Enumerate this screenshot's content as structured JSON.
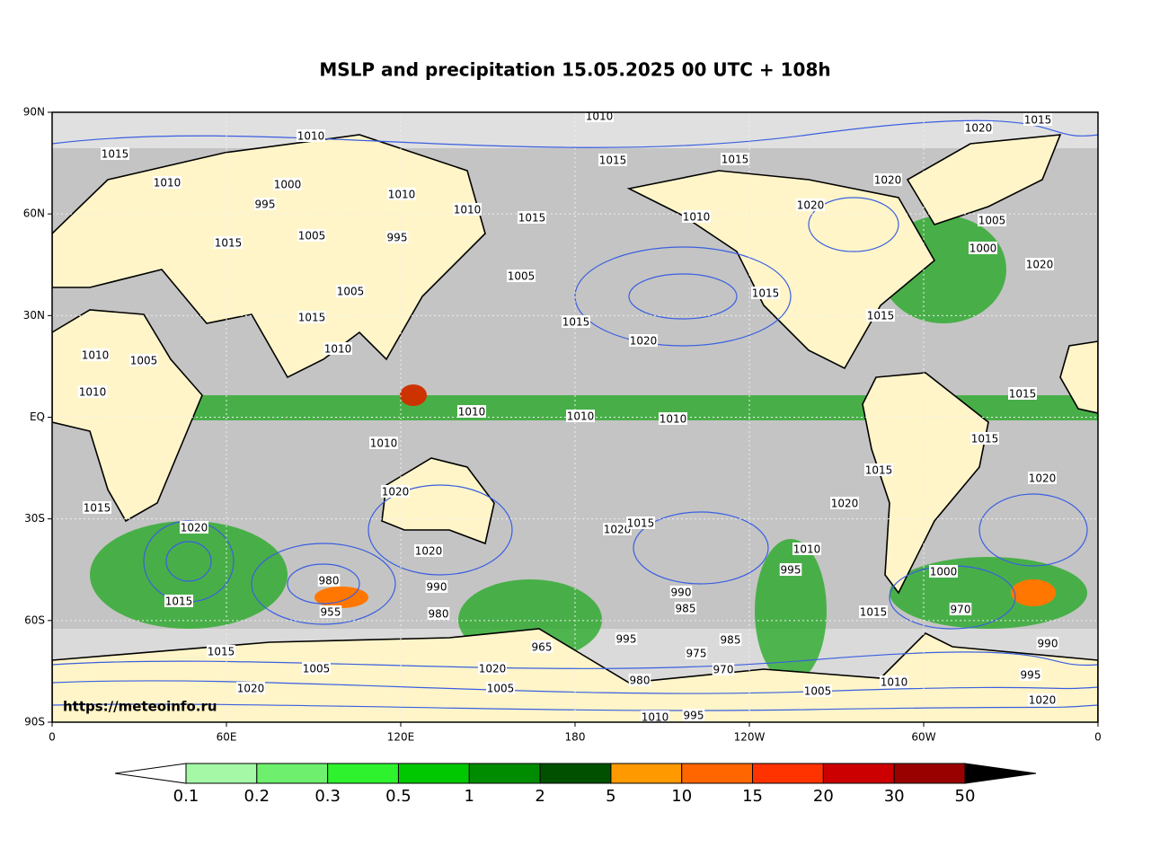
{
  "map": {
    "title": "MSLP and precipitation 15.05.2025 00 UTC + 108h",
    "source": "https://meteoinfo.ru",
    "xticks": [
      "0",
      "60E",
      "120E",
      "180",
      "120W",
      "60W",
      "0"
    ],
    "yticks": [
      "90N",
      "60N",
      "30N",
      "EQ",
      "30S",
      "60S",
      "90S"
    ],
    "colorbar": {
      "labels": [
        0.1,
        0.2,
        0.3,
        0.5,
        1,
        2,
        5,
        10,
        15,
        20,
        30,
        50
      ],
      "colors": [
        "#a5f8a5",
        "#6ef06e",
        "#2df22d",
        "#00c800",
        "#008c00",
        "#005000",
        "#ff9900",
        "#ff6600",
        "#ff3300",
        "#cc0000",
        "#990000"
      ]
    },
    "isobar_labels": [
      "1010",
      "1015",
      "1020",
      "1015",
      "1010",
      "1015",
      "1015",
      "1010",
      "1000",
      "995",
      "1020",
      "1010",
      "1010",
      "1020",
      "1015",
      "1010",
      "1005",
      "1015",
      "1005",
      "995",
      "1000",
      "1005",
      "1020",
      "1015",
      "1005",
      "1015",
      "1015",
      "1020",
      "1015",
      "1010",
      "1010",
      "1005",
      "1010",
      "1015",
      "1010",
      "1010",
      "1010",
      "1010",
      "1015",
      "1015",
      "1020",
      "1020",
      "1020",
      "1015",
      "1020",
      "1020",
      "1015",
      "1020",
      "980",
      "990",
      "1015",
      "955",
      "980",
      "990",
      "985",
      "995",
      "1010",
      "1000",
      "970",
      "1015",
      "995",
      "985",
      "975",
      "965",
      "1005",
      "1020",
      "1015",
      "1020",
      "1005",
      "990",
      "995",
      "1010",
      "1005",
      "1020",
      "1010",
      "995",
      "970",
      "980"
    ]
  }
}
